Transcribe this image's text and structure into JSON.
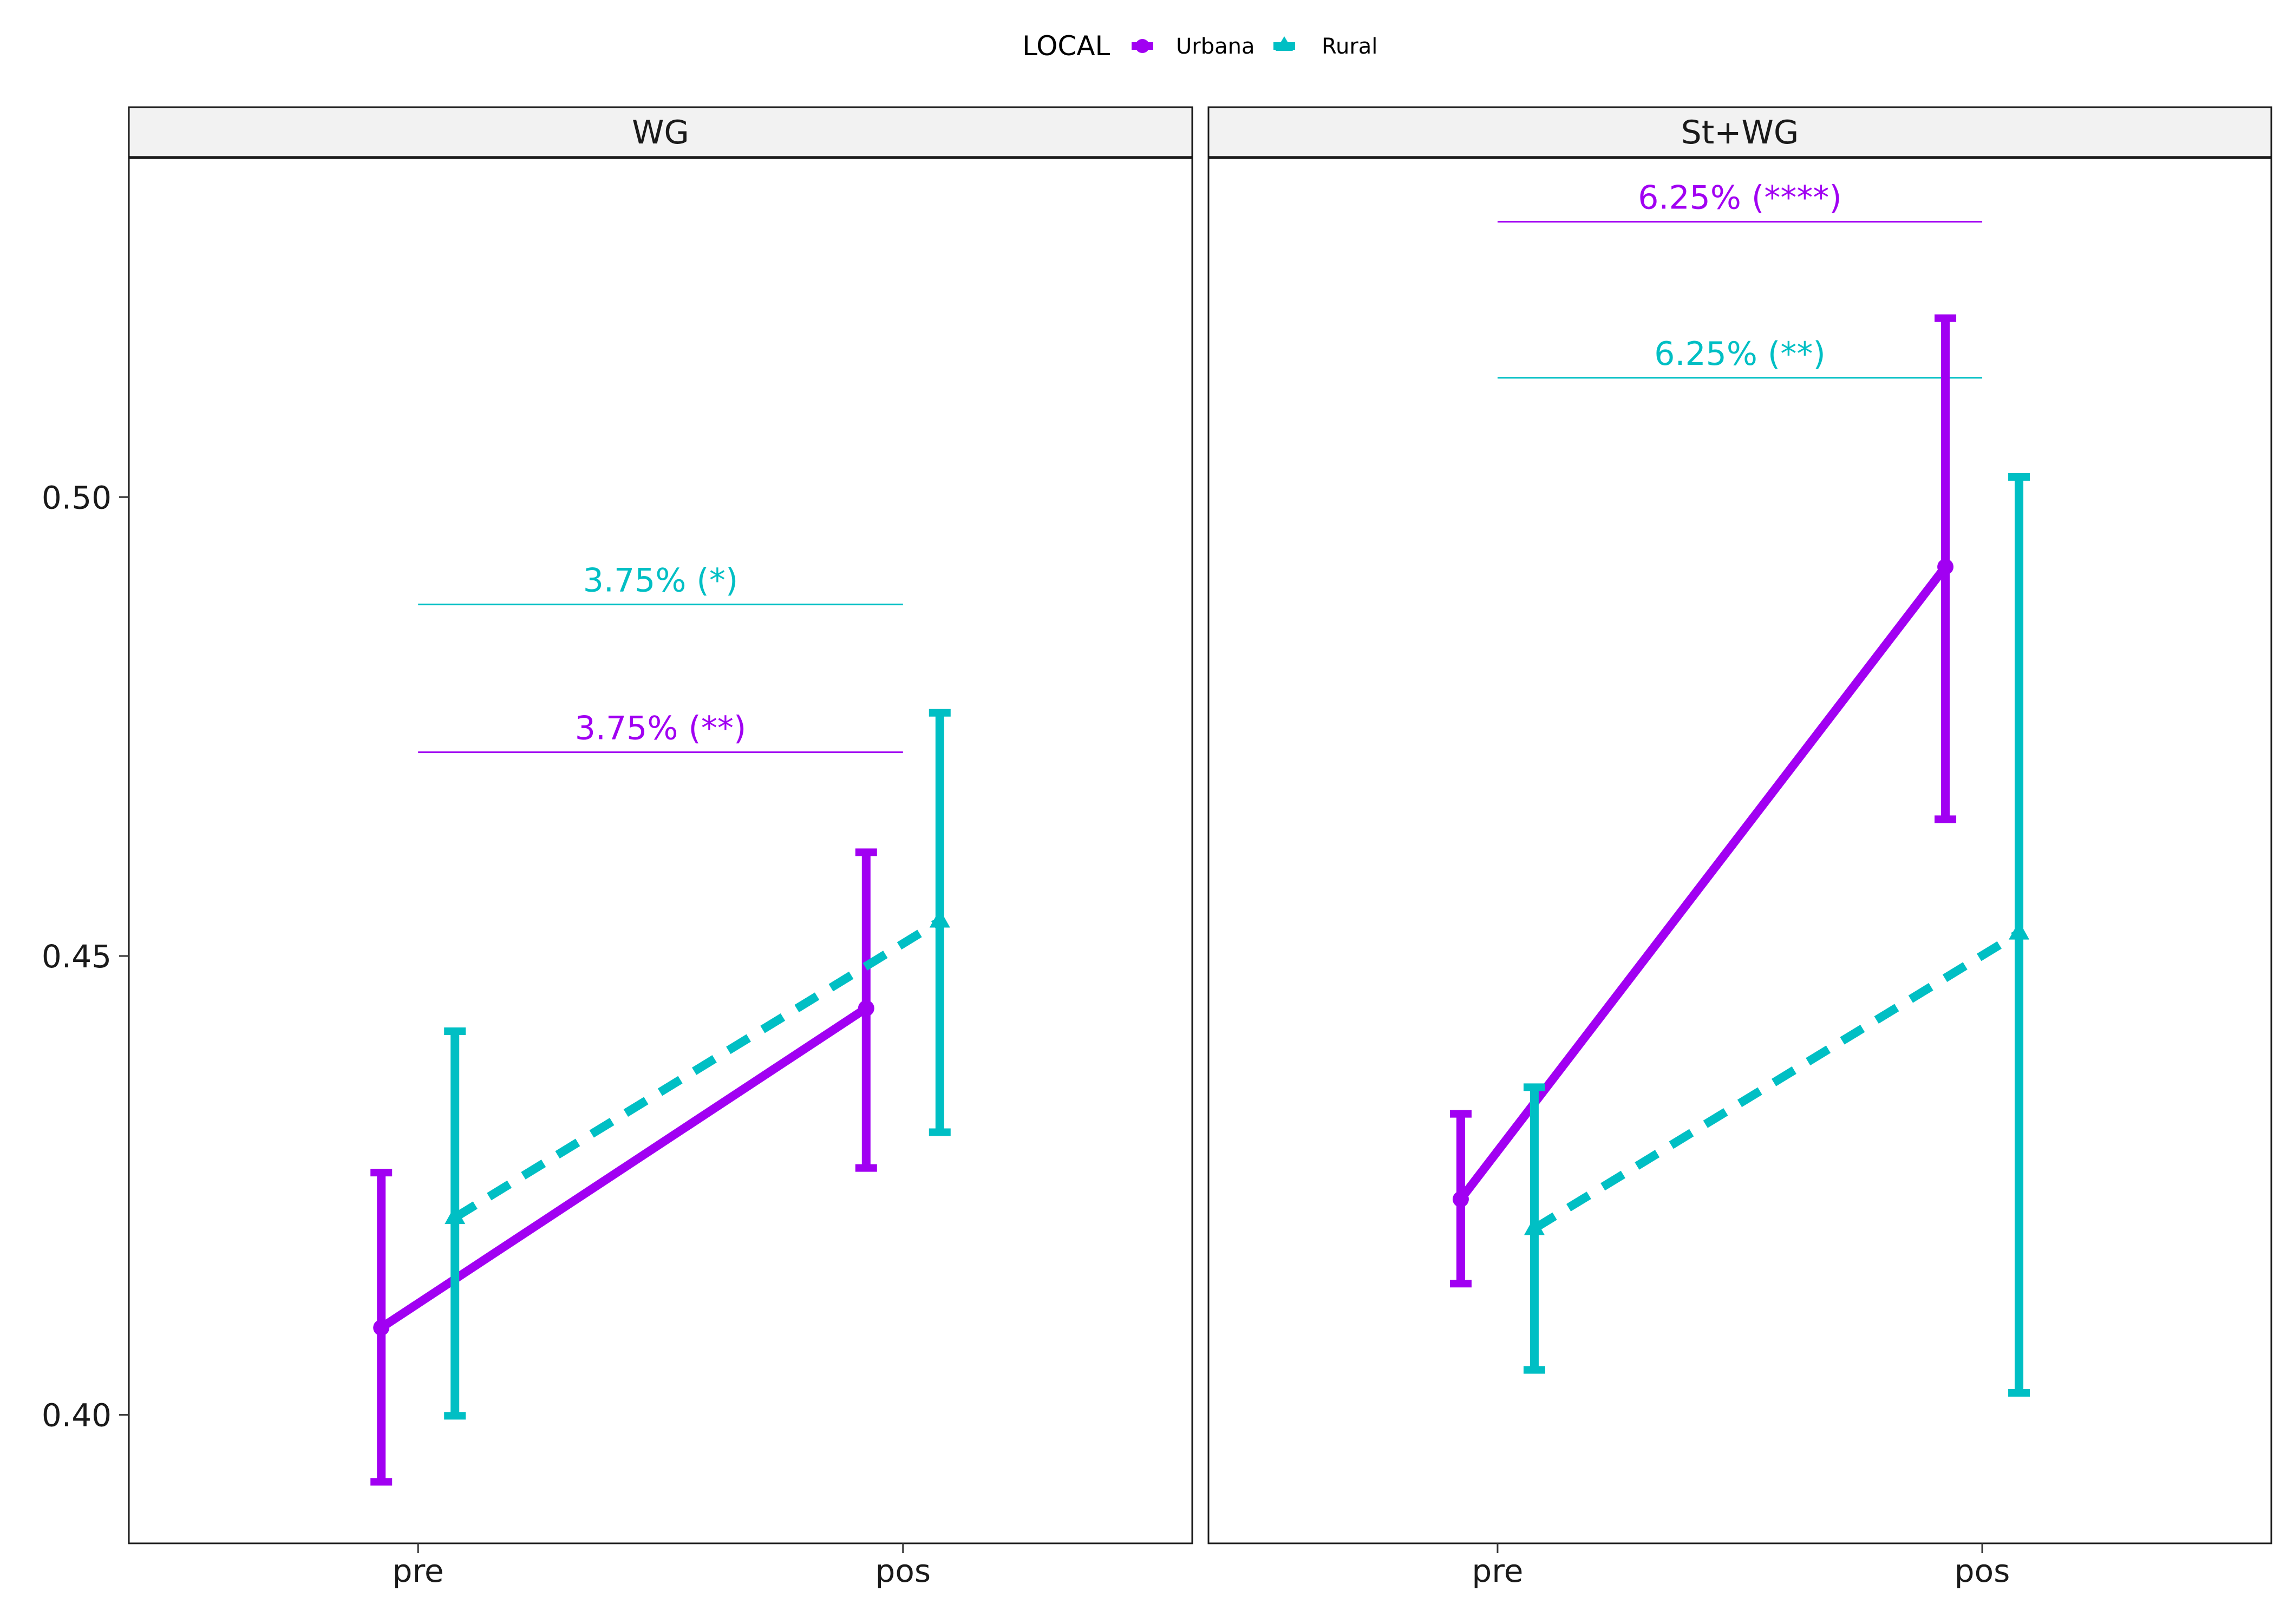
{
  "colors": {
    "Urbana": "#A100F2",
    "Rural": "#00BFC4"
  },
  "chart_data": {
    "type": "line",
    "legend": {
      "title": "LOCAL",
      "position": "top",
      "entries": [
        "Urbana",
        "Rural"
      ]
    },
    "x_categories": [
      "pre",
      "pos"
    ],
    "y_range": [
      0.386,
      0.537
    ],
    "y_ticks": [
      "0.40",
      "0.45",
      "0.50"
    ],
    "grid": false,
    "panels": [
      {
        "strip": "WG",
        "series": [
          {
            "name": "Urbana",
            "line": "solid",
            "marker": "circle",
            "mean": [
              0.4095,
              0.4443
            ],
            "lower": [
              0.3927,
              0.4269
            ],
            "upper": [
              0.4264,
              0.4613
            ]
          },
          {
            "name": "Rural",
            "line": "dashed",
            "marker": "triangle",
            "mean": [
              0.4215,
              0.4538
            ],
            "lower": [
              0.3999,
              0.4308
            ],
            "upper": [
              0.4418,
              0.4765
            ]
          }
        ],
        "annotations": [
          {
            "label": "3.75% (*)",
            "series": "Rural",
            "y": 0.4883
          },
          {
            "label": "3.75% (**)",
            "series": "Urbana",
            "y": 0.4722
          }
        ]
      },
      {
        "strip": "St+WG",
        "series": [
          {
            "name": "Urbana",
            "line": "solid",
            "marker": "circle",
            "mean": [
              0.4235,
              0.4924
            ],
            "lower": [
              0.4143,
              0.4649
            ],
            "upper": [
              0.4328,
              0.5195
            ]
          },
          {
            "name": "Rural",
            "line": "dashed",
            "marker": "triangle",
            "mean": [
              0.4203,
              0.4525
            ],
            "lower": [
              0.4049,
              0.4024
            ],
            "upper": [
              0.4357,
              0.5022
            ]
          }
        ],
        "annotations": [
          {
            "label": "6.25% (****)",
            "series": "Urbana",
            "y": 0.53
          },
          {
            "label": "6.25% (**)",
            "series": "Rural",
            "y": 0.513
          }
        ]
      }
    ]
  }
}
